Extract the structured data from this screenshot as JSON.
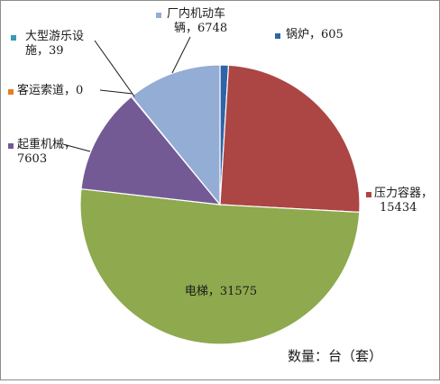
{
  "chart_data": {
    "type": "pie",
    "categories": [
      "锅炉",
      "压力容器",
      "电梯",
      "起重机械",
      "客运索道",
      "大型游乐设施",
      "厂内机动车辆"
    ],
    "values": [
      605,
      15434,
      31575,
      7603,
      0,
      39,
      6748
    ],
    "labels": [
      {
        "lines": [
          "锅炉，605"
        ]
      },
      {
        "lines": [
          "压力容器，",
          "15434"
        ]
      },
      {
        "lines": [
          "电梯，31575"
        ]
      },
      {
        "lines": [
          "起重机械，",
          "7603"
        ]
      },
      {
        "lines": [
          "客运索道，0"
        ]
      },
      {
        "lines": [
          "大型游乐设",
          "施，39"
        ]
      },
      {
        "lines": [
          "厂内机动车",
          "辆，6748"
        ]
      }
    ],
    "colors": [
      "#2f64a8",
      "#ab4644",
      "#8ea94e",
      "#735a95",
      "#e67e22",
      "#3a9aaf",
      "#93add4"
    ],
    "unit_note": "数量：台（套）",
    "start_angle_deg": 0,
    "direction": "clockwise"
  }
}
